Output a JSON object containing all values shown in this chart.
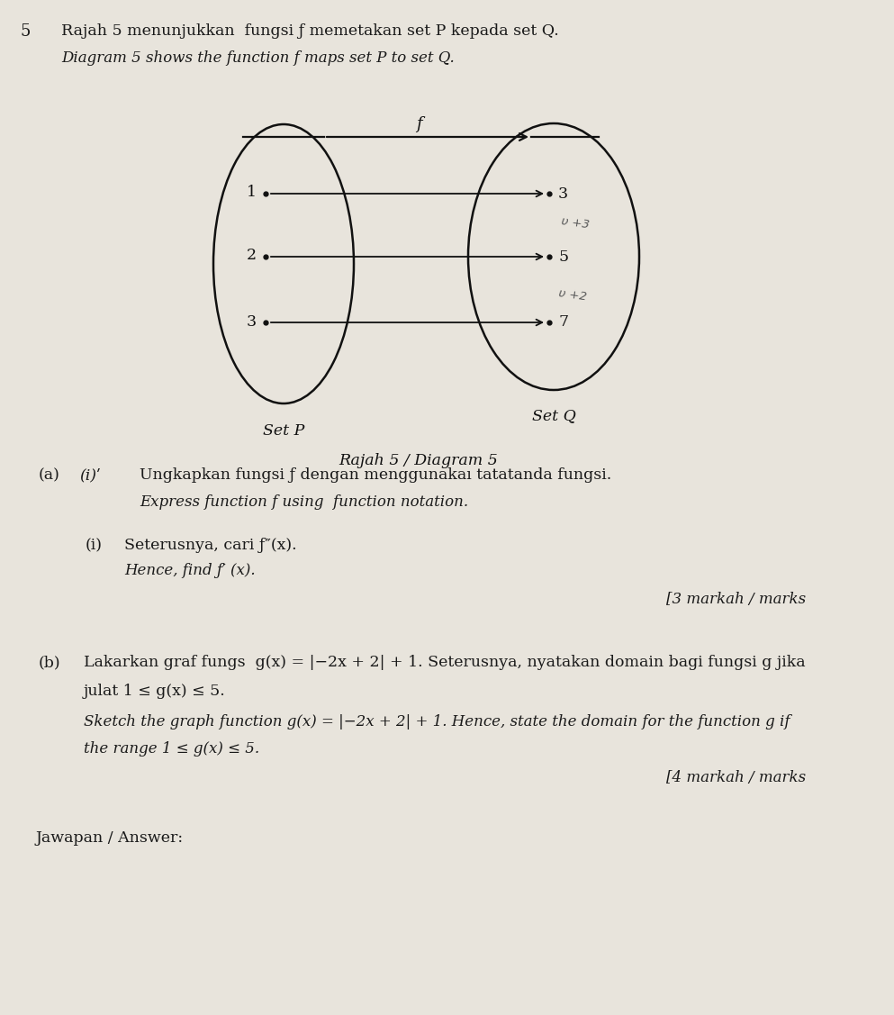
{
  "bg_color": "#e8e4dc",
  "question_number": "5",
  "line1": "Rajah 5 menunjukkan  fungsi ƒ memetakan set P kepada set Q.",
  "line2": "Diagram 5 shows the function f maps set P to set Q.",
  "diagram_caption": "Rajah 5 / Diagram 5",
  "set_P_label": "Set P",
  "set_Q_label": "Set Q",
  "f_label": "f",
  "set_P_elements": [
    "1",
    "2",
    "3"
  ],
  "set_Q_elements": [
    "3",
    "5",
    "7"
  ],
  "hw_ann1": "υ +3",
  "hw_ann2": "υ +2",
  "part_a_label": "(a)",
  "part_ai_label": "(i)ʹ",
  "part_a_text1": "Ungkapkan fungsi ƒ dengan menggunakaı tatatanda fungsi.",
  "part_a_text2": "Express function f using  function notation.",
  "part_ai_num": "(i)",
  "part_ai_text1": "Seterusnya, cari ƒ″(x).",
  "part_ai_text2": "Hence, find ƒ′ (x).",
  "marks_a": "[3 markah / marks",
  "part_b_label": "(b)",
  "part_b_text1": "Lakarkan graf fungs  g(x) = |−2x + 2| + 1. Seterusnya, nyatakan domain bagi fungsi g jika",
  "part_b_text2": "julat 1 ≤ g(x) ≤ 5.",
  "part_b_text3": "Sketch the graph function g(x) = |−2x + 2| + 1. Hence, state the domain for the function g if",
  "part_b_text4": "the range 1 ≤ g(x) ≤ 5.",
  "marks_b": "[4 markah / marks",
  "answer_label": "Jawapan / Answer:"
}
